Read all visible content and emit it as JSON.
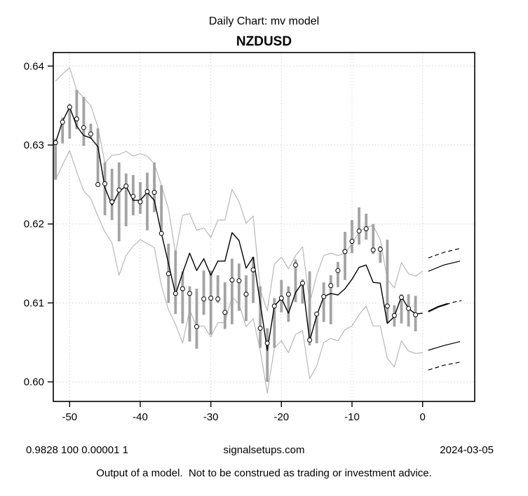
{
  "header": {
    "title": "Daily Chart: mv model",
    "symbol": "NZDUSD"
  },
  "footer": {
    "params": "0.9828 100 0.00001 1",
    "site": "signalsetups.com",
    "date": "2024-03-05",
    "disclaimer": "Output of a model.  Not to be construed as trading or investment advice."
  },
  "chart_data": {
    "type": "line",
    "title": "Daily Chart: mv model",
    "subtitle": "NZDUSD",
    "xlabel": "",
    "ylabel": "",
    "xlim": [
      -52.3,
      7.4
    ],
    "ylim": [
      0.5975,
      0.6417
    ],
    "grid": true,
    "legend_position": "none",
    "x_ticks": [
      {
        "value": -50,
        "label": "-50"
      },
      {
        "value": -40,
        "label": "-40"
      },
      {
        "value": -30,
        "label": "-30"
      },
      {
        "value": -20,
        "label": "-20"
      },
      {
        "value": -10,
        "label": "-10"
      },
      {
        "value": 0,
        "label": "0"
      }
    ],
    "y_ticks": [
      {
        "value": 0.6,
        "label": "0.60"
      },
      {
        "value": 0.61,
        "label": "0.61"
      },
      {
        "value": 0.62,
        "label": "0.62"
      },
      {
        "value": 0.63,
        "label": "0.63"
      },
      {
        "value": 0.64,
        "label": "0.64"
      }
    ],
    "style": {
      "bar_color": "#a3a3a3",
      "band_color": "#b8b8b8",
      "grid_color": "#d2d2d2",
      "line_color": "#000000",
      "marker": "open-circle"
    },
    "days": [
      -52,
      -51,
      -50,
      -49,
      -48,
      -47,
      -46,
      -45,
      -44,
      -43,
      -42,
      -41,
      -40,
      -39,
      -38,
      -37,
      -36,
      -35,
      -34,
      -33,
      -32,
      -31,
      -30,
      -29,
      -28,
      -27,
      -26,
      -25,
      -24,
      -23,
      -22,
      -21,
      -20,
      -19,
      -18,
      -17,
      -16,
      -15,
      -14,
      -13,
      -12,
      -11,
      -10,
      -9,
      -8,
      -7,
      -6,
      -5,
      -4,
      -3,
      -2,
      -1
    ],
    "model_days": [
      -52,
      -51,
      -50,
      -49,
      -48,
      -47,
      -46,
      -45,
      -44,
      -43,
      -42,
      -41,
      -40,
      -39,
      -38,
      -37,
      -36,
      -35,
      -34,
      -33,
      -32,
      -31,
      -30,
      -29,
      -28,
      -27,
      -26,
      -25,
      -24,
      -23,
      -22,
      -21,
      -20,
      -19,
      -18,
      -17,
      -16,
      -15,
      -14,
      -13,
      -12,
      -11,
      -10,
      -9,
      -8,
      -7,
      -6,
      -5,
      -4,
      -3,
      -2,
      -1,
      0
    ],
    "series": {
      "high": [
        0.6308,
        0.6335,
        0.6352,
        0.637,
        0.6361,
        0.6327,
        0.6321,
        0.6278,
        0.627,
        0.6278,
        0.6264,
        0.6262,
        0.6253,
        0.6265,
        0.6278,
        0.6249,
        0.6175,
        0.6166,
        0.614,
        0.6121,
        0.6118,
        0.6141,
        0.6141,
        0.6135,
        0.6126,
        0.6156,
        0.615,
        0.6135,
        0.6158,
        0.6121,
        0.6068,
        0.6106,
        0.6129,
        0.6121,
        0.6155,
        0.613,
        0.614,
        0.6088,
        0.6126,
        0.6135,
        0.6152,
        0.619,
        0.6205,
        0.6221,
        0.6213,
        0.62,
        0.6172,
        0.618,
        0.6097,
        0.6111,
        0.6111,
        0.6109
      ],
      "low": [
        0.6256,
        0.6302,
        0.6308,
        0.632,
        0.6299,
        0.6308,
        0.6248,
        0.6211,
        0.6205,
        0.6178,
        0.6197,
        0.6211,
        0.6213,
        0.6192,
        0.6215,
        0.6185,
        0.61,
        0.6086,
        0.6074,
        0.6051,
        0.6042,
        0.6085,
        0.606,
        0.61,
        0.6067,
        0.6073,
        0.609,
        0.6077,
        0.61,
        0.6043,
        0.6,
        0.6043,
        0.6088,
        0.6076,
        0.6101,
        0.6099,
        0.6046,
        0.6049,
        0.6076,
        0.6073,
        0.612,
        0.6129,
        0.6163,
        0.6174,
        0.618,
        0.6162,
        0.6151,
        0.6075,
        0.607,
        0.6074,
        0.607,
        0.6064
      ],
      "close": [
        0.6303,
        0.6329,
        0.6348,
        0.6333,
        0.6322,
        0.6314,
        0.625,
        0.6251,
        0.6228,
        0.6243,
        0.6248,
        0.6235,
        0.6228,
        0.6241,
        0.624,
        0.6188,
        0.6137,
        0.6112,
        0.6118,
        0.6112,
        0.607,
        0.6105,
        0.6106,
        0.6105,
        0.6088,
        0.6129,
        0.6128,
        0.6111,
        0.6142,
        0.6068,
        0.6049,
        0.6096,
        0.6106,
        0.6111,
        0.6148,
        0.6125,
        0.6053,
        0.6086,
        0.6108,
        0.6122,
        0.6141,
        0.6165,
        0.6178,
        0.6191,
        0.6194,
        0.6167,
        0.6168,
        0.6096,
        0.6084,
        0.6107,
        0.6093,
        0.6085
      ],
      "model": [
        0.6303,
        0.633,
        0.6348,
        0.6324,
        0.6312,
        0.6309,
        0.6298,
        0.6246,
        0.6224,
        0.6241,
        0.6248,
        0.623,
        0.623,
        0.624,
        0.623,
        0.6188,
        0.615,
        0.6111,
        0.6138,
        0.6163,
        0.6141,
        0.6156,
        0.6135,
        0.6153,
        0.6153,
        0.6189,
        0.6179,
        0.6144,
        0.6158,
        0.61,
        0.604,
        0.6096,
        0.6106,
        0.6087,
        0.6113,
        0.6126,
        0.6052,
        0.6084,
        0.6108,
        0.6112,
        0.611,
        0.6118,
        0.613,
        0.6145,
        0.6148,
        0.6126,
        0.6125,
        0.6074,
        0.6083,
        0.6108,
        0.6093,
        0.6086,
        0.6087
      ],
      "upper_band": [
        0.6381,
        0.639,
        0.6398,
        0.6369,
        0.636,
        0.635,
        0.6323,
        0.6277,
        0.6287,
        0.6288,
        0.6292,
        0.6286,
        0.6289,
        0.6286,
        0.6276,
        0.6249,
        0.6219,
        0.6163,
        0.6211,
        0.6213,
        0.6192,
        0.6195,
        0.6183,
        0.6205,
        0.6205,
        0.6244,
        0.6228,
        0.6201,
        0.621,
        0.6117,
        0.609,
        0.6149,
        0.6158,
        0.6143,
        0.616,
        0.6171,
        0.61,
        0.6135,
        0.616,
        0.6163,
        0.616,
        0.6163,
        0.6175,
        0.619,
        0.6196,
        0.6198,
        0.618,
        0.613,
        0.6119,
        0.6151,
        0.6137,
        0.6134,
        0.614
      ],
      "lower_band": [
        0.6256,
        0.6275,
        0.6293,
        0.6266,
        0.6242,
        0.6232,
        0.621,
        0.619,
        0.6176,
        0.6135,
        0.616,
        0.6172,
        0.618,
        0.6175,
        0.617,
        0.6122,
        0.6091,
        0.6073,
        0.6049,
        0.6091,
        0.607,
        0.6071,
        0.6057,
        0.6075,
        0.6075,
        0.6108,
        0.6098,
        0.607,
        0.608,
        0.604,
        0.5986,
        0.6043,
        0.6052,
        0.6037,
        0.606,
        0.6065,
        0.6004,
        0.602,
        0.605,
        0.6055,
        0.6052,
        0.6066,
        0.6071,
        0.6085,
        0.6096,
        0.6071,
        0.6071,
        0.603,
        0.6019,
        0.6052,
        0.6039,
        0.6036,
        0.6037
      ],
      "series_names": [
        "high",
        "low",
        "close",
        "model",
        "upper_band",
        "lower_band"
      ]
    },
    "forecast": [
      {
        "name": "upper-outer-dashed",
        "style": "dashed",
        "width": 1.2,
        "points": [
          [
            0.8,
            0.6157
          ],
          [
            3.0,
            0.6164
          ],
          [
            5.3,
            0.6169
          ]
        ]
      },
      {
        "name": "upper-inner-solid",
        "style": "solid",
        "width": 1.2,
        "points": [
          [
            0.8,
            0.614
          ],
          [
            3.0,
            0.6148
          ],
          [
            5.3,
            0.6153
          ]
        ]
      },
      {
        "name": "mean-solid",
        "style": "solid",
        "width": 2.2,
        "points": [
          [
            0.8,
            0.6089
          ],
          [
            2.2,
            0.6095
          ],
          [
            3.6,
            0.6099
          ]
        ]
      },
      {
        "name": "mean-dashed-tail",
        "style": "dashed",
        "width": 1.2,
        "points": [
          [
            3.3,
            0.6098
          ],
          [
            4.4,
            0.6101
          ],
          [
            5.5,
            0.6103
          ]
        ]
      },
      {
        "name": "lower-inner-solid",
        "style": "solid",
        "width": 1.2,
        "points": [
          [
            0.8,
            0.604
          ],
          [
            3.0,
            0.6046
          ],
          [
            5.3,
            0.6051
          ]
        ]
      },
      {
        "name": "lower-outer-dashed",
        "style": "dashed",
        "width": 1.2,
        "points": [
          [
            0.8,
            0.6015
          ],
          [
            3.0,
            0.6021
          ],
          [
            5.3,
            0.6025
          ]
        ]
      }
    ]
  }
}
